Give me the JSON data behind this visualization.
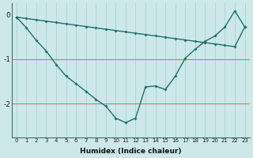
{
  "xlabel": "Humidex (Indice chaleur)",
  "background_color": "#cce8e8",
  "grid_color_v": "#aad4d4",
  "grid_color_h": "#cc7777",
  "line_color": "#1e7070",
  "curve_main_x": [
    0,
    1,
    2,
    3,
    4,
    5,
    6,
    7,
    8,
    9,
    10,
    11,
    12,
    13,
    14,
    15,
    16,
    17,
    18,
    19,
    20,
    21,
    22,
    23
  ],
  "curve_main_y": [
    -0.06,
    -0.3,
    -0.58,
    -0.82,
    -1.12,
    -1.38,
    -1.55,
    -1.72,
    -1.9,
    -2.05,
    -2.32,
    -2.42,
    -2.32,
    -1.62,
    -1.6,
    -1.68,
    -1.38,
    -0.98,
    -0.78,
    -0.6,
    -0.48,
    -0.28,
    0.08,
    -0.28
  ],
  "curve_straight_x": [
    0,
    1,
    2,
    3,
    4,
    5,
    6,
    7,
    8,
    9,
    10,
    11,
    12,
    13,
    14,
    15,
    16,
    17,
    18,
    19,
    20,
    21,
    22,
    23
  ],
  "curve_straight_y": [
    -0.06,
    -0.09,
    -0.12,
    -0.15,
    -0.18,
    -0.21,
    -0.24,
    -0.27,
    -0.3,
    -0.33,
    -0.36,
    -0.39,
    -0.42,
    -0.45,
    -0.48,
    -0.51,
    -0.54,
    -0.57,
    -0.6,
    -0.63,
    -0.66,
    -0.69,
    -0.72,
    -0.28
  ],
  "ylim": [
    -2.75,
    0.25
  ],
  "xlim": [
    -0.5,
    23.5
  ],
  "yticks": [
    0,
    -1,
    -2
  ],
  "xticks": [
    0,
    1,
    2,
    3,
    4,
    5,
    6,
    7,
    8,
    9,
    10,
    11,
    12,
    13,
    14,
    15,
    16,
    17,
    18,
    19,
    20,
    21,
    22,
    23
  ],
  "hline_y": [
    -1.0,
    -2.0
  ]
}
